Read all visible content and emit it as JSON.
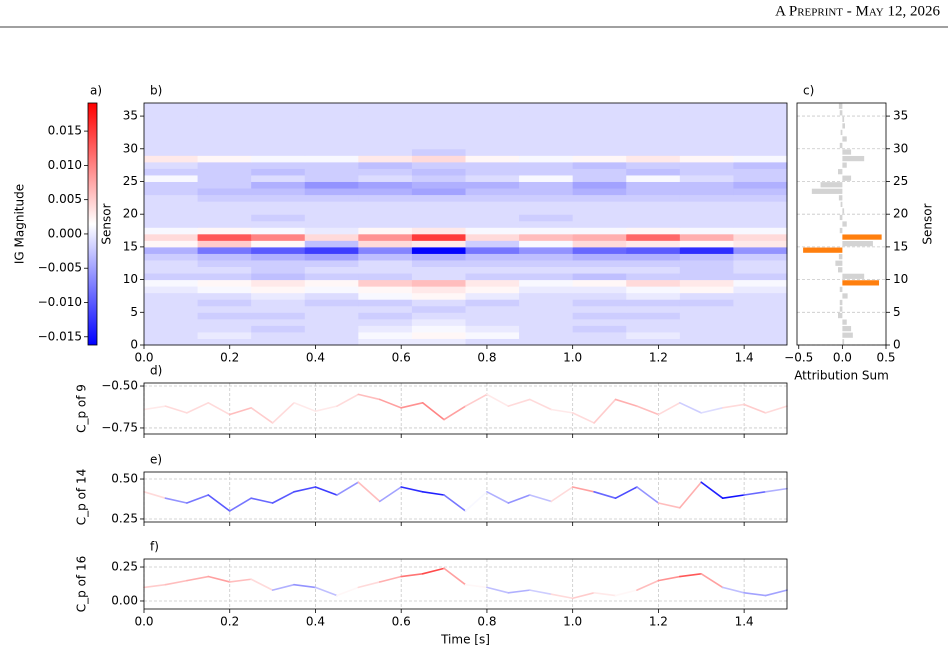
{
  "header": "A Preprint - May 12, 2026",
  "chart_data": [
    {
      "type": "colorbar",
      "label": "a)",
      "ylabel": "IG Magnitude",
      "cmap": "bwr",
      "ylim": [
        -0.0162,
        0.0191
      ],
      "yticks": [
        {
          "value": -0.015,
          "label": "−0.015"
        },
        {
          "value": -0.01,
          "label": "−0.010"
        },
        {
          "value": -0.005,
          "label": "−0.005"
        },
        {
          "value": 0,
          "label": "0.000"
        },
        {
          "value": 0.005,
          "label": "0.005"
        },
        {
          "value": 0.01,
          "label": "0.010"
        },
        {
          "value": 0.015,
          "label": "0.015"
        }
      ]
    },
    {
      "type": "heatmap",
      "label": "b)",
      "ylabel": "Sensor",
      "xlim": [
        0,
        1.5
      ],
      "ylim": [
        0,
        37
      ],
      "xticks": [
        {
          "value": 0,
          "label": "0.0"
        },
        0.2,
        0.4,
        0.6,
        0.8,
        {
          "value": 1,
          "label": "1.0"
        },
        1.2,
        1.4
      ],
      "yticks": [
        0,
        5,
        10,
        15,
        20,
        25,
        30,
        35
      ],
      "z": [
        [
          -0.001,
          -0.001,
          -0.001,
          -0.001,
          0,
          0,
          -0.001,
          -0.001,
          -0.001,
          -0.001,
          -0.001,
          -0.001
        ],
        [
          -0.001,
          0,
          -0.001,
          -0.001,
          0.001,
          0.002,
          0.001,
          -0.001,
          -0.001,
          0,
          -0.001,
          -0.001
        ],
        [
          -0.001,
          -0.001,
          -0.002,
          -0.001,
          0,
          0.001,
          0,
          -0.001,
          -0.002,
          -0.001,
          -0.001,
          -0.001
        ],
        [
          -0.001,
          -0.001,
          -0.001,
          -0.001,
          -0.001,
          0,
          -0.001,
          -0.001,
          -0.001,
          -0.001,
          -0.001,
          -0.001
        ],
        [
          -0.001,
          -0.002,
          -0.002,
          -0.001,
          -0.002,
          -0.001,
          -0.001,
          -0.001,
          -0.002,
          -0.002,
          -0.001,
          -0.001
        ],
        [
          -0.001,
          -0.001,
          -0.001,
          -0.001,
          -0.001,
          -0.002,
          -0.001,
          -0.001,
          -0.001,
          -0.001,
          -0.001,
          -0.001
        ],
        [
          -0.001,
          -0.002,
          -0.001,
          -0.002,
          -0.002,
          -0.001,
          -0.002,
          -0.001,
          -0.002,
          -0.002,
          -0.002,
          -0.001
        ],
        [
          -0.001,
          -0.001,
          0,
          -0.001,
          0.001,
          0.002,
          0,
          -0.001,
          -0.001,
          0,
          -0.001,
          -0.001
        ],
        [
          0,
          0.001,
          0.002,
          0.001,
          0.002,
          0.003,
          0.002,
          0,
          0,
          0.001,
          0.002,
          0
        ],
        [
          0.001,
          0.002,
          0.003,
          0.002,
          0.005,
          0.006,
          0.003,
          0.001,
          0.002,
          0.004,
          0.003,
          0.001
        ],
        [
          -0.002,
          -0.002,
          -0.003,
          -0.002,
          -0.002,
          -0.001,
          -0.002,
          -0.002,
          -0.003,
          -0.002,
          -0.002,
          -0.002
        ],
        [
          -0.001,
          -0.001,
          -0.002,
          -0.001,
          -0.001,
          -0.001,
          -0.001,
          -0.001,
          -0.001,
          -0.001,
          -0.002,
          -0.001
        ],
        [
          -0.001,
          -0.002,
          -0.002,
          -0.002,
          -0.001,
          -0.002,
          -0.002,
          -0.002,
          -0.002,
          -0.002,
          -0.002,
          -0.001
        ],
        [
          -0.002,
          -0.003,
          -0.004,
          -0.005,
          -0.003,
          -0.004,
          -0.003,
          -0.003,
          -0.004,
          -0.004,
          -0.003,
          -0.002
        ],
        [
          -0.004,
          -0.008,
          -0.01,
          -0.012,
          -0.007,
          -0.016,
          -0.008,
          -0.006,
          -0.009,
          -0.01,
          -0.013,
          -0.006
        ],
        [
          0.002,
          0.005,
          0.002,
          -0.003,
          0.004,
          0.003,
          -0.002,
          0.001,
          0.004,
          0.003,
          0.002,
          0.003
        ],
        [
          0.004,
          0.013,
          0.01,
          0.004,
          0.009,
          0.015,
          0.004,
          0.006,
          0.007,
          0.012,
          0.007,
          0.004
        ],
        [
          0.001,
          0.002,
          0.001,
          0,
          0.002,
          0.003,
          0.001,
          0.001,
          0.001,
          0.002,
          0.001,
          0.001
        ],
        [
          -0.001,
          -0.001,
          -0.001,
          -0.001,
          -0.001,
          -0.001,
          -0.001,
          -0.001,
          -0.001,
          -0.001,
          -0.001,
          -0.001
        ],
        [
          -0.001,
          -0.001,
          -0.002,
          -0.001,
          -0.001,
          -0.001,
          -0.001,
          -0.002,
          -0.001,
          -0.001,
          -0.001,
          -0.001
        ],
        [
          -0.001,
          -0.001,
          -0.001,
          -0.001,
          -0.001,
          -0.001,
          -0.001,
          -0.001,
          -0.001,
          -0.001,
          -0.001,
          -0.001
        ],
        [
          -0.001,
          -0.001,
          -0.001,
          -0.001,
          -0.001,
          -0.001,
          -0.001,
          -0.001,
          -0.001,
          -0.001,
          -0.001,
          -0.001
        ],
        [
          -0.001,
          -0.002,
          -0.002,
          -0.002,
          -0.002,
          -0.002,
          -0.002,
          -0.002,
          -0.002,
          -0.002,
          -0.002,
          -0.002
        ],
        [
          -0.002,
          -0.003,
          -0.003,
          -0.004,
          -0.004,
          -0.005,
          -0.003,
          -0.003,
          -0.004,
          -0.003,
          -0.003,
          -0.003
        ],
        [
          -0.002,
          -0.002,
          -0.004,
          -0.006,
          -0.005,
          -0.004,
          -0.004,
          -0.003,
          -0.005,
          -0.003,
          -0.003,
          -0.004
        ],
        [
          0.001,
          -0.002,
          -0.001,
          -0.002,
          -0.001,
          -0.002,
          -0.001,
          0.001,
          -0.002,
          0.001,
          -0.001,
          -0.002
        ],
        [
          -0.002,
          -0.002,
          -0.003,
          -0.002,
          -0.002,
          -0.003,
          -0.002,
          -0.002,
          -0.002,
          -0.003,
          -0.002,
          -0.002
        ],
        [
          -0.001,
          -0.002,
          -0.002,
          -0.002,
          -0.003,
          -0.002,
          -0.002,
          -0.002,
          -0.003,
          -0.002,
          -0.002,
          -0.003
        ],
        [
          0.003,
          0.002,
          0.001,
          0.001,
          0.003,
          0.004,
          0.002,
          0.001,
          0.002,
          0.003,
          0.002,
          0.001
        ],
        [
          -0.001,
          -0.001,
          -0.001,
          -0.001,
          -0.001,
          -0.002,
          -0.001,
          -0.001,
          -0.001,
          -0.001,
          -0.001,
          -0.001
        ],
        [
          -0.001,
          -0.001,
          -0.001,
          -0.001,
          -0.001,
          -0.001,
          -0.001,
          -0.001,
          -0.001,
          -0.001,
          -0.001,
          -0.001
        ],
        [
          -0.001,
          -0.001,
          -0.001,
          -0.001,
          -0.001,
          -0.001,
          -0.001,
          -0.001,
          -0.001,
          -0.001,
          -0.001,
          -0.001
        ],
        [
          -0.001,
          -0.001,
          -0.001,
          -0.001,
          -0.001,
          -0.001,
          -0.001,
          -0.001,
          -0.001,
          -0.001,
          -0.001,
          -0.001
        ],
        [
          -0.001,
          -0.001,
          -0.001,
          -0.001,
          -0.001,
          -0.001,
          -0.001,
          -0.001,
          -0.001,
          -0.001,
          -0.001,
          -0.001
        ],
        [
          -0.001,
          -0.001,
          -0.001,
          -0.001,
          -0.001,
          -0.001,
          -0.001,
          -0.001,
          -0.001,
          -0.001,
          -0.001,
          -0.001
        ],
        [
          -0.001,
          -0.001,
          -0.001,
          -0.001,
          -0.001,
          -0.001,
          -0.001,
          -0.001,
          -0.001,
          -0.001,
          -0.001,
          -0.001
        ],
        [
          -0.001,
          -0.001,
          -0.001,
          -0.001,
          -0.001,
          -0.001,
          -0.001,
          -0.001,
          -0.001,
          -0.001,
          -0.001,
          -0.001
        ]
      ]
    },
    {
      "type": "barh",
      "label": "c)",
      "ylabel": "Sensor",
      "xlabel": "Attribution Sum",
      "xlim": [
        -0.52,
        0.5
      ],
      "ylim": [
        0,
        37
      ],
      "grid": true,
      "xticks": [
        {
          "value": -0.5,
          "label": "−0.5"
        },
        {
          "value": 0,
          "label": "0.0"
        },
        0.5
      ],
      "yticks": [
        0,
        5,
        10,
        15,
        20,
        25,
        30,
        35
      ],
      "color": "#d3d3d3",
      "highlight_color": "#ff7f0e",
      "highlight": [
        9,
        14,
        16
      ],
      "values": [
        0.02,
        0.12,
        0.1,
        0.05,
        -0.05,
        -0.03,
        -0.03,
        0.06,
        -0.03,
        0.42,
        0.25,
        -0.05,
        -0.08,
        -0.04,
        -0.45,
        0.35,
        0.45,
        -0.03,
        0.05,
        -0.03,
        0.02,
        -0.02,
        -0.04,
        -0.35,
        -0.25,
        0.1,
        -0.05,
        0.05,
        0.25,
        0.1,
        -0.03,
        0.05,
        -0.02,
        0.03,
        0.02,
        -0.03,
        -0.04
      ]
    },
    {
      "type": "line",
      "label": "d)",
      "ylabel": "C_p of 9",
      "xlim": [
        0,
        1.5
      ],
      "ylim": [
        -0.786,
        -0.482
      ],
      "grid": true,
      "xticks": [
        0,
        0.2,
        0.4,
        0.6,
        0.8,
        1,
        1.2,
        1.4
      ],
      "yticks": [
        {
          "value": -0.5,
          "label": "−0.50"
        },
        {
          "value": -0.75,
          "label": "−0.75"
        }
      ],
      "x": [
        0,
        0.05,
        0.1,
        0.15,
        0.2,
        0.25,
        0.3,
        0.35,
        0.4,
        0.45,
        0.5,
        0.55,
        0.6,
        0.65,
        0.7,
        0.75,
        0.8,
        0.85,
        0.9,
        0.95,
        1,
        1.05,
        1.1,
        1.15,
        1.2,
        1.25,
        1.3,
        1.35,
        1.4,
        1.45,
        1.5
      ],
      "values": [
        -0.64,
        -0.62,
        -0.66,
        -0.6,
        -0.67,
        -0.63,
        -0.72,
        -0.6,
        -0.65,
        -0.62,
        -0.55,
        -0.58,
        -0.63,
        -0.6,
        -0.7,
        -0.62,
        -0.55,
        -0.62,
        -0.58,
        -0.64,
        -0.66,
        -0.72,
        -0.58,
        -0.62,
        -0.67,
        -0.6,
        -0.66,
        -0.63,
        -0.61,
        -0.66,
        -0.62
      ],
      "ig": [
        0.003,
        0.004,
        0.004,
        0.004,
        0.006,
        0.005,
        0.004,
        0.003,
        0.003,
        0.004,
        0.006,
        0.008,
        0.009,
        0.01,
        0.008,
        0.005,
        0.003,
        0.004,
        0.004,
        0.003,
        0.004,
        0.005,
        0.007,
        0.006,
        0.004,
        -0.002,
        -0.001,
        0.004,
        0.005,
        0.004,
        0.004
      ]
    },
    {
      "type": "line",
      "label": "e)",
      "ylabel": "C_p of 14",
      "xlim": [
        0,
        1.5
      ],
      "ylim": [
        0.231,
        0.544
      ],
      "grid": true,
      "xticks": [
        0,
        0.2,
        0.4,
        0.6,
        0.8,
        1,
        1.2,
        1.4
      ],
      "yticks": [
        {
          "value": 0.25,
          "label": "0.25"
        },
        {
          "value": 0.5,
          "label": "0.50"
        }
      ],
      "x": [
        0,
        0.05,
        0.1,
        0.15,
        0.2,
        0.25,
        0.3,
        0.35,
        0.4,
        0.45,
        0.5,
        0.55,
        0.6,
        0.65,
        0.7,
        0.75,
        0.8,
        0.85,
        0.9,
        0.95,
        1,
        1.05,
        1.1,
        1.15,
        1.2,
        1.25,
        1.3,
        1.35,
        1.4,
        1.45,
        1.5
      ],
      "values": [
        0.42,
        0.38,
        0.35,
        0.4,
        0.3,
        0.38,
        0.35,
        0.42,
        0.45,
        0.4,
        0.48,
        0.36,
        0.45,
        0.42,
        0.4,
        0.3,
        0.42,
        0.35,
        0.4,
        0.36,
        0.45,
        0.42,
        0.38,
        0.45,
        0.35,
        0.32,
        0.48,
        0.38,
        0.4,
        0.42,
        0.44
      ],
      "ig": [
        0.004,
        -0.006,
        -0.008,
        -0.01,
        -0.008,
        -0.009,
        -0.01,
        -0.011,
        -0.012,
        -0.006,
        0.006,
        -0.005,
        -0.013,
        -0.014,
        -0.008,
        0.001,
        -0.004,
        -0.006,
        -0.003,
        0.004,
        0.008,
        -0.009,
        -0.011,
        -0.006,
        0.006,
        0.007,
        -0.014,
        -0.015,
        -0.009,
        -0.004,
        -0.004
      ]
    },
    {
      "type": "line",
      "label": "f)",
      "ylabel": "C_p of 16",
      "xlabel": "Time [s]",
      "xlim": [
        0,
        1.5
      ],
      "ylim": [
        -0.059,
        0.309
      ],
      "grid": true,
      "xticks": [
        {
          "value": 0,
          "label": "0.0"
        },
        0.2,
        0.4,
        0.6,
        0.8,
        {
          "value": 1,
          "label": "1.0"
        },
        1.2,
        1.4
      ],
      "yticks": [
        {
          "value": 0,
          "label": "0.00"
        },
        {
          "value": 0.25,
          "label": "0.25"
        }
      ],
      "x": [
        0,
        0.05,
        0.1,
        0.15,
        0.2,
        0.25,
        0.3,
        0.35,
        0.4,
        0.45,
        0.5,
        0.55,
        0.6,
        0.65,
        0.7,
        0.75,
        0.8,
        0.85,
        0.9,
        0.95,
        1,
        1.05,
        1.1,
        1.15,
        1.2,
        1.25,
        1.3,
        1.35,
        1.4,
        1.45,
        1.5
      ],
      "values": [
        0.1,
        0.12,
        0.15,
        0.18,
        0.14,
        0.16,
        0.08,
        0.12,
        0.1,
        0.04,
        0.1,
        0.14,
        0.18,
        0.2,
        0.24,
        0.12,
        0.1,
        0.06,
        0.08,
        0.05,
        0.02,
        0.06,
        0.04,
        0.08,
        0.15,
        0.18,
        0.2,
        0.1,
        0.06,
        0.04,
        0.08
      ],
      "ig": [
        0.005,
        0.006,
        0.007,
        0.008,
        0.006,
        0.004,
        -0.004,
        -0.006,
        -0.003,
        0.002,
        0.004,
        0.007,
        0.011,
        0.014,
        0.008,
        0.002,
        -0.003,
        -0.004,
        -0.002,
        0.004,
        0.005,
        0.003,
        0.002,
        0.006,
        0.009,
        0.013,
        0.008,
        -0.003,
        -0.005,
        -0.005,
        -0.003
      ]
    }
  ]
}
